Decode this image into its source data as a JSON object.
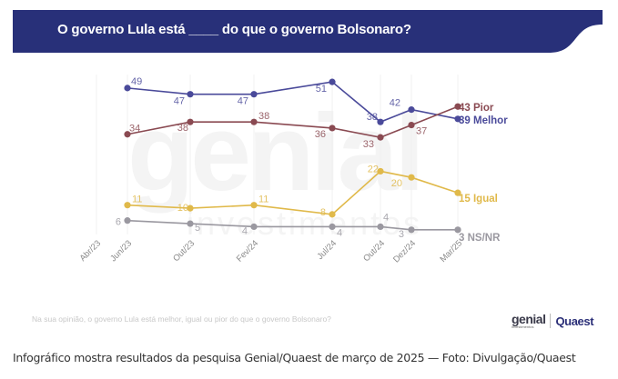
{
  "header": {
    "title": "O governo Lula está ____ do que o governo Bolsonaro?",
    "bg_color": "#283079"
  },
  "watermark": {
    "brand": "genial",
    "sub": "investimentos"
  },
  "footer": {
    "question": "Na sua opinião, o governo Lula está melhor, igual ou pior do que o governo Bolsonaro?",
    "logo_left": "genial",
    "logo_left_sub": "investimentos",
    "logo_right": "Quaest"
  },
  "caption": "Infográfico mostra resultados da pesquisa Genial/Quaest de março de 2025 — Foto: Divulgação/Quaest",
  "chart_data": {
    "type": "line",
    "title": "O governo Lula está ____ do que o governo Bolsonaro?",
    "xlabel": "",
    "ylabel": "",
    "categories": [
      "Abr/23",
      "Jun/23",
      "Out/23",
      "Fev/24",
      "Jul/24",
      "Out/24",
      "Dez/24",
      "Mar/25"
    ],
    "ylim": [
      0,
      55
    ],
    "grid": "vertical",
    "legend": "end-of-line labels",
    "series": [
      {
        "name": "Melhor",
        "end_label": "39 Melhor",
        "color": "#4a4a9a",
        "values": [
          null,
          49,
          47,
          47,
          51,
          38,
          42,
          39
        ]
      },
      {
        "name": "Pior",
        "end_label": "43 Pior",
        "color": "#8a4a52",
        "values": [
          null,
          34,
          38,
          38,
          36,
          33,
          37,
          43
        ]
      },
      {
        "name": "Igual",
        "end_label": "15 Igual",
        "color": "#e0b94a",
        "values": [
          null,
          11,
          10,
          11,
          8,
          22,
          20,
          15
        ]
      },
      {
        "name": "NS/NR",
        "end_label": "3 NS/NR",
        "color": "#9a98a0",
        "values": [
          null,
          6,
          5,
          4,
          4,
          4,
          3,
          3
        ]
      }
    ]
  }
}
